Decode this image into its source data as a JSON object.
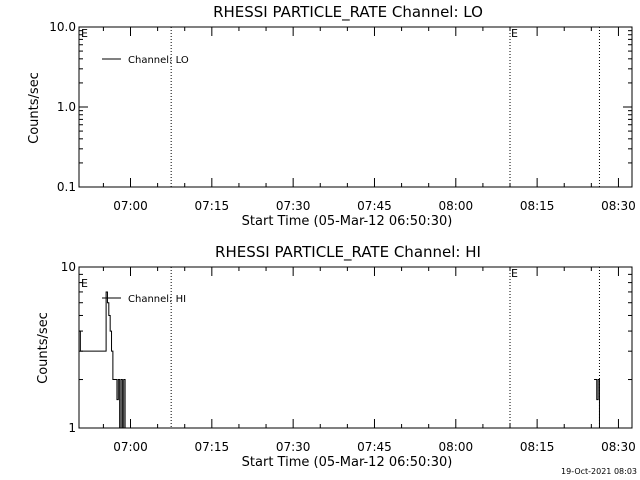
{
  "stamp": "19-Oct-2021 08:03",
  "chart_data": [
    {
      "type": "line",
      "title": "RHESSI PARTICLE_RATE Channel: LO",
      "xlabel": "Start Time (05-Mar-12 06:50:30)",
      "ylabel": "Counts/sec",
      "xlim": [
        "06:50:30",
        "08:32:30"
      ],
      "ylim": [
        0.1,
        10.0
      ],
      "yscale": "log",
      "x_ticks": [
        "07:00",
        "07:15",
        "07:30",
        "07:45",
        "08:00",
        "08:15",
        "08:30"
      ],
      "y_ticks": [
        "0.1",
        "1.0",
        "10.0"
      ],
      "legend": "top-left",
      "series": [
        {
          "name": "Channel: LO",
          "x": [],
          "y": []
        }
      ],
      "markers": [
        {
          "x": "07:07:30",
          "label": ""
        },
        {
          "x": "08:10:00",
          "label": "E"
        },
        {
          "x": "08:26:30",
          "label": ""
        }
      ],
      "edge_labels": {
        "left": "E"
      }
    },
    {
      "type": "line",
      "title": "RHESSI PARTICLE_RATE Channel: HI",
      "xlabel": "Start Time (05-Mar-12 06:50:30)",
      "ylabel": "Counts/sec",
      "xlim": [
        "06:50:30",
        "08:32:30"
      ],
      "ylim": [
        1,
        10
      ],
      "yscale": "log",
      "x_ticks": [
        "07:00",
        "07:15",
        "07:30",
        "07:45",
        "08:00",
        "08:15",
        "08:30"
      ],
      "y_ticks": [
        "1",
        "10"
      ],
      "legend": "top-left",
      "series": [
        {
          "name": "Channel: HI",
          "x": [
            "06:50:30",
            "06:50:45",
            "06:55:30",
            "06:55:45",
            "06:56:00",
            "06:56:15",
            "06:56:30",
            "06:56:45",
            "06:57:00",
            "06:57:15",
            "06:57:30",
            "06:57:45",
            "06:58:00",
            "06:58:15",
            "06:58:30",
            "06:58:45",
            "06:59:00"
          ],
          "y": [
            4,
            3,
            7,
            6,
            5,
            4,
            3,
            2,
            2,
            2,
            1.5,
            2,
            1,
            2,
            1,
            2,
            1
          ]
        },
        {
          "name": "",
          "x": [
            "08:25:30",
            "08:25:45",
            "08:26:00",
            "08:26:15",
            "08:26:30",
            "08:26:45"
          ],
          "y": [
            2,
            2,
            1.5,
            2,
            1,
            1
          ]
        }
      ],
      "markers": [
        {
          "x": "07:07:30",
          "label": ""
        },
        {
          "x": "08:10:00",
          "label": "E"
        },
        {
          "x": "08:26:30",
          "label": ""
        }
      ],
      "edge_labels": {
        "left": "E"
      }
    }
  ]
}
